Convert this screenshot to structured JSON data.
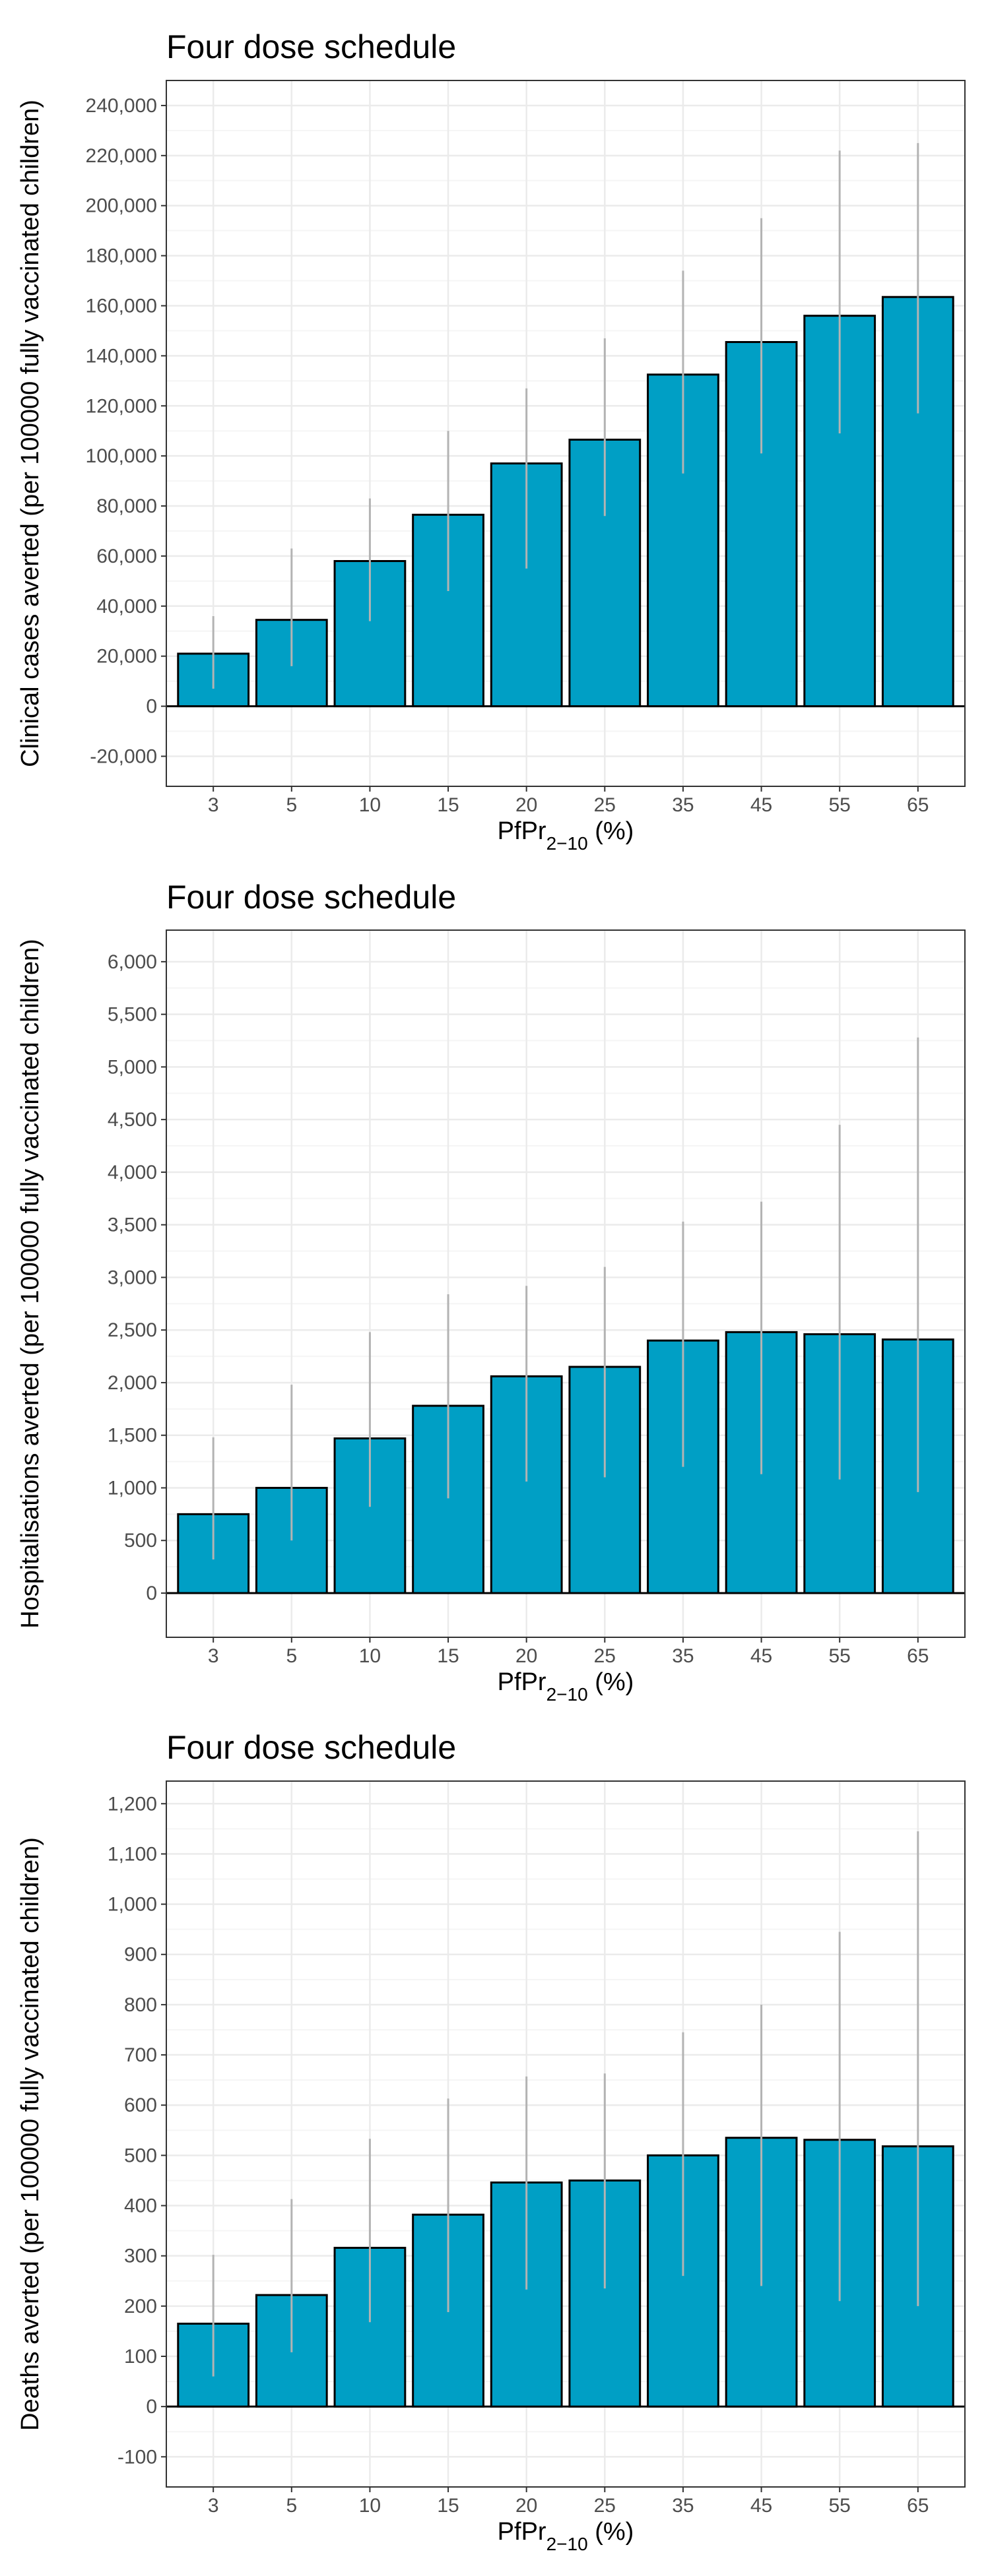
{
  "colors": {
    "bar_fill": "#009fc5",
    "bar_stroke": "#000000",
    "error_bar": "#b3b3b3",
    "grid_major": "#ebebeb",
    "grid_minor": "#f5f5f5",
    "panel_border": "#333333",
    "zero_line": "#000000"
  },
  "chart_data": [
    {
      "type": "bar",
      "title": "Four dose schedule",
      "xlabel": "PfPr",
      "xlabel_subscript": "2−10",
      "xlabel_suffix": " (%)",
      "ylabel": "Clinical cases averted (per 100000 fully vaccinated children)",
      "categories": [
        "3",
        "5",
        "10",
        "15",
        "20",
        "25",
        "35",
        "45",
        "55",
        "65"
      ],
      "values": [
        21000,
        34500,
        58000,
        76500,
        97000,
        106500,
        132500,
        145500,
        156000,
        163500
      ],
      "error_low": [
        7000,
        16000,
        34000,
        46000,
        55000,
        76000,
        93000,
        101000,
        109000,
        117000
      ],
      "error_high": [
        36000,
        63000,
        83000,
        110000,
        127000,
        147000,
        174000,
        195000,
        222000,
        225000
      ],
      "ylim": [
        -32000,
        250000
      ],
      "yticks": [
        -20000,
        0,
        20000,
        40000,
        60000,
        80000,
        100000,
        120000,
        140000,
        160000,
        180000,
        200000,
        220000,
        240000
      ],
      "ytick_labels": [
        "-20,000",
        "0",
        "20,000",
        "40,000",
        "60,000",
        "80,000",
        "100,000",
        "120,000",
        "140,000",
        "160,000",
        "180,000",
        "200,000",
        "220,000",
        "240,000"
      ],
      "grid": true,
      "legend": false
    },
    {
      "type": "bar",
      "title": "Four dose schedule",
      "xlabel": "PfPr",
      "xlabel_subscript": "2−10",
      "xlabel_suffix": " (%)",
      "ylabel": "Hospitalisations averted (per 100000 fully vaccinated children)",
      "categories": [
        "3",
        "5",
        "10",
        "15",
        "20",
        "25",
        "35",
        "45",
        "55",
        "65"
      ],
      "values": [
        750,
        1000,
        1470,
        1780,
        2060,
        2150,
        2400,
        2480,
        2460,
        2410
      ],
      "error_low": [
        320,
        500,
        820,
        900,
        1060,
        1100,
        1200,
        1130,
        1080,
        960
      ],
      "error_high": [
        1480,
        1980,
        2480,
        2840,
        2920,
        3100,
        3530,
        3720,
        4450,
        5280
      ],
      "ylim": [
        -420,
        6300
      ],
      "yticks": [
        0,
        500,
        1000,
        1500,
        2000,
        2500,
        3000,
        3500,
        4000,
        4500,
        5000,
        5500,
        6000
      ],
      "ytick_labels": [
        "0",
        "500",
        "1,000",
        "1,500",
        "2,000",
        "2,500",
        "3,000",
        "3,500",
        "4,000",
        "4,500",
        "5,000",
        "5,500",
        "6,000"
      ],
      "grid": true,
      "legend": false
    },
    {
      "type": "bar",
      "title": "Four dose schedule",
      "xlabel": "PfPr",
      "xlabel_subscript": "2−10",
      "xlabel_suffix": " (%)",
      "ylabel": "Deaths averted (per 100000 fully vaccinated children)",
      "categories": [
        "3",
        "5",
        "10",
        "15",
        "20",
        "25",
        "35",
        "45",
        "55",
        "65"
      ],
      "values": [
        165,
        222,
        316,
        382,
        446,
        450,
        500,
        535,
        531,
        518
      ],
      "error_low": [
        60,
        108,
        168,
        188,
        233,
        235,
        260,
        240,
        210,
        200
      ],
      "error_high": [
        302,
        413,
        533,
        613,
        657,
        663,
        745,
        800,
        945,
        1145
      ],
      "ylim": [
        -160,
        1245
      ],
      "yticks": [
        -100,
        0,
        100,
        200,
        300,
        400,
        500,
        600,
        700,
        800,
        900,
        1000,
        1100,
        1200
      ],
      "ytick_labels": [
        "-100",
        "0",
        "100",
        "200",
        "300",
        "400",
        "500",
        "600",
        "700",
        "800",
        "900",
        "1,000",
        "1,100",
        "1,200"
      ],
      "grid": true,
      "legend": false
    }
  ]
}
